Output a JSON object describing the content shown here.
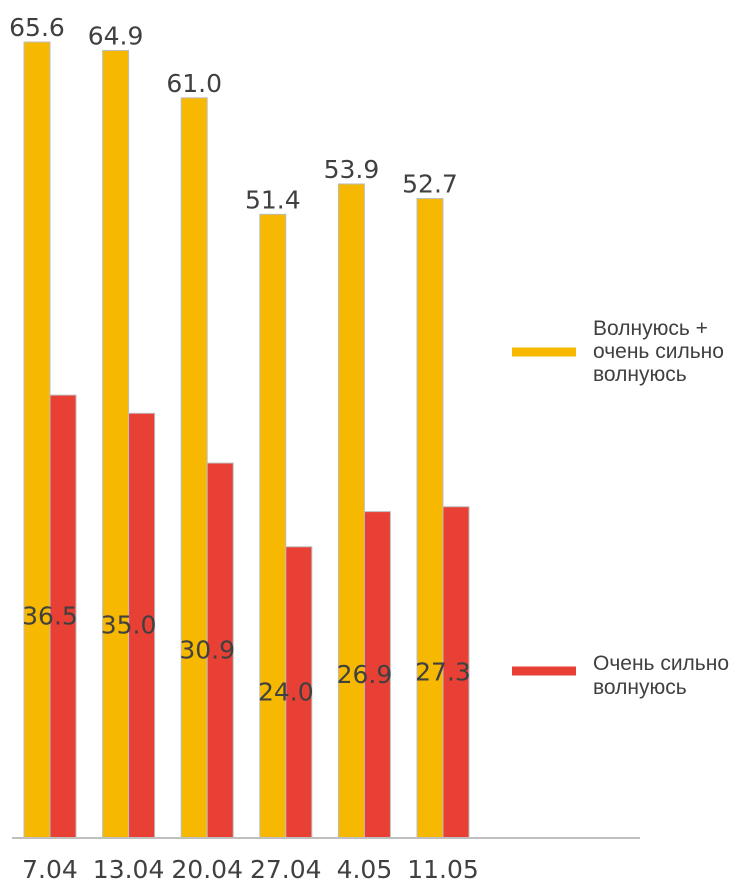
{
  "chart_data": {
    "type": "bar",
    "categories": [
      "7.04",
      "13.04",
      "20.04",
      "27.04",
      "4.05",
      "11.05"
    ],
    "series": [
      {
        "name": "Волнуюсь + очень сильно волнуюсь",
        "name_lines": [
          "Волнуюсь +",
          "очень сильно",
          "волнуюсь"
        ],
        "color": "#F6B800",
        "values": [
          65.6,
          64.9,
          61.0,
          51.4,
          53.9,
          52.7
        ],
        "value_labels": [
          "65.6",
          "64.9",
          "61.0",
          "51.4",
          "53.9",
          "52.7"
        ]
      },
      {
        "name": "Очень сильно волнуюсь",
        "name_lines": [
          "Очень сильно",
          "волнуюсь"
        ],
        "color": "#E84035",
        "values": [
          36.5,
          35.0,
          30.9,
          24.0,
          26.9,
          27.3
        ],
        "value_labels": [
          "36.5",
          "35.0",
          "30.9",
          "24.0",
          "26.9",
          "27.3"
        ]
      }
    ],
    "title": "",
    "xlabel": "",
    "ylabel": "",
    "ylim": [
      0,
      65.6
    ],
    "grid": false,
    "legend": "right"
  }
}
